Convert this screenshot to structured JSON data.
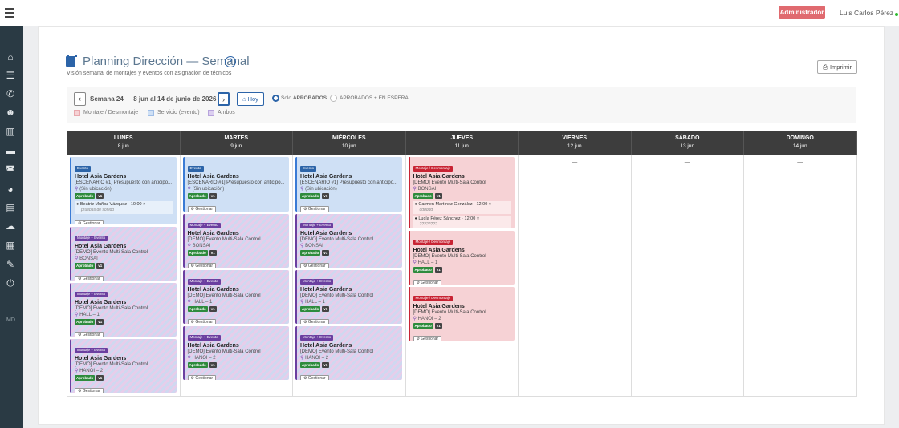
{
  "topbar": {
    "admin_label": "Administrador",
    "user_name": "Luis Carlos Pérez"
  },
  "sidebar": {
    "icons": [
      "home-icon",
      "sliders-icon",
      "phone-icon",
      "users-icon",
      "building-icon",
      "folder-icon",
      "car-icon",
      "palette-icon",
      "box-icon",
      "cloud-icon",
      "printer-icon",
      "wrench-icon",
      "power-icon"
    ],
    "footer_label": "MD"
  },
  "header": {
    "title": "Planning Dirección — Semanal",
    "subtitle": "Visión semanal de montajes y eventos con asignación de técnicos",
    "print_label": "Imprimir"
  },
  "filters": {
    "prev": "‹",
    "next": "›",
    "week_label": "Semana 24 — 8 jun al 14 de junio de 2026",
    "today_label": "Hoy",
    "radio1_prefix": "Solo",
    "radio1_strong": "APROBADOS",
    "radio2_label": "APROBADOS + EN ESPERA",
    "legend": [
      {
        "label": "Montaje / Desmontaje",
        "color": "#f6d2d5",
        "border": "#e8a8ad"
      },
      {
        "label": "Servicio (evento)",
        "color": "#cfe0f5",
        "border": "#9fbde6"
      },
      {
        "label": "Ambos",
        "color": "#dccff0",
        "border": "#b7a3dc"
      }
    ]
  },
  "days": [
    {
      "name": "LUNES",
      "date": "8 jun"
    },
    {
      "name": "MARTES",
      "date": "9 jun"
    },
    {
      "name": "MIÉRCOLES",
      "date": "10 jun"
    },
    {
      "name": "JUEVES",
      "date": "11 jun"
    },
    {
      "name": "VIERNES",
      "date": "12 jun"
    },
    {
      "name": "SÁBADO",
      "date": "13 jun"
    },
    {
      "name": "DOMINGO",
      "date": "14 jun"
    }
  ],
  "empty_dash": "—",
  "labels": {
    "approved": "Aprobado",
    "version": "v1",
    "manage": "Gestionar",
    "badge_evento": "Evento",
    "badge_mixto": "Montaje + Evento",
    "badge_mont": "Montaje / Desmontaje"
  },
  "columns": [
    {
      "cards": [
        {
          "type": "evento",
          "title": "Hotel Asia Gardens",
          "sub": "[ESCENARIO #1] Presupuesto con anticipo...",
          "loc": "(Sin ubicación)",
          "techs": [
            {
              "name": "Beatriz Muñoz Vázquez · 10:00",
              "note": "pruebas de sonido"
            }
          ]
        },
        {
          "type": "mixto",
          "title": "Hotel Asia Gardens",
          "sub": "[DEMO] Evento Multi-Sala Control",
          "loc": "BONSAI",
          "techs": []
        },
        {
          "type": "mixto",
          "title": "Hotel Asia Gardens",
          "sub": "[DEMO] Evento Multi-Sala Control",
          "loc": "HALL – 1",
          "techs": []
        },
        {
          "type": "mixto",
          "title": "Hotel Asia Gardens",
          "sub": "[DEMO] Evento Multi-Sala Control",
          "loc": "HANOI – 2",
          "techs": []
        }
      ]
    },
    {
      "cards": [
        {
          "type": "evento",
          "title": "Hotel Asia Gardens",
          "sub": "[ESCENARIO #1] Presupuesto con anticipo...",
          "loc": "(Sin ubicación)",
          "techs": []
        },
        {
          "type": "mixto",
          "title": "Hotel Asia Gardens",
          "sub": "[DEMO] Evento Multi-Sala Control",
          "loc": "BONSAI",
          "techs": []
        },
        {
          "type": "mixto",
          "title": "Hotel Asia Gardens",
          "sub": "[DEMO] Evento Multi-Sala Control",
          "loc": "HALL – 1",
          "techs": []
        },
        {
          "type": "mixto",
          "title": "Hotel Asia Gardens",
          "sub": "[DEMO] Evento Multi-Sala Control",
          "loc": "HANOI – 2",
          "techs": []
        }
      ]
    },
    {
      "cards": [
        {
          "type": "evento",
          "title": "Hotel Asia Gardens",
          "sub": "[ESCENARIO #1] Presupuesto con anticipo...",
          "loc": "(Sin ubicación)",
          "techs": []
        },
        {
          "type": "mixto",
          "title": "Hotel Asia Gardens",
          "sub": "[DEMO] Evento Multi-Sala Control",
          "loc": "BONSAI",
          "techs": []
        },
        {
          "type": "mixto",
          "title": "Hotel Asia Gardens",
          "sub": "[DEMO] Evento Multi-Sala Control",
          "loc": "HALL – 1",
          "techs": []
        },
        {
          "type": "mixto",
          "title": "Hotel Asia Gardens",
          "sub": "[DEMO] Evento Multi-Sala Control",
          "loc": "HANOI – 2",
          "techs": []
        }
      ]
    },
    {
      "cards": [
        {
          "type": "mont",
          "title": "Hotel Asia Gardens",
          "sub": "[DEMO] Evento Multi-Sala Control",
          "loc": "BONSAI",
          "techs": [
            {
              "name": "Carmen Martínez González · 12:00",
              "note": "dddddd"
            },
            {
              "name": "Lucía Pérez Sánchez · 12:00",
              "note": "????????"
            }
          ]
        },
        {
          "type": "mont",
          "title": "Hotel Asia Gardens",
          "sub": "[DEMO] Evento Multi-Sala Control",
          "loc": "HALL – 1",
          "techs": []
        },
        {
          "type": "mont",
          "title": "Hotel Asia Gardens",
          "sub": "[DEMO] Evento Multi-Sala Control",
          "loc": "HANOI – 2",
          "techs": []
        }
      ]
    },
    {
      "cards": []
    },
    {
      "cards": []
    },
    {
      "cards": []
    }
  ]
}
